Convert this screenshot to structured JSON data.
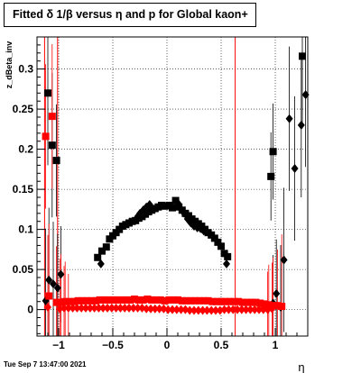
{
  "canvas_title": "Fitted δ 1/β versus η and p for Global kaon+",
  "footer_timestamp": "Tue Sep  7 13:47:00 2021",
  "chart_data": {
    "type": "scatter",
    "title": "Fitted δ 1/β versus η and p for Global kaon+",
    "xlabel": "η",
    "ylabel": "z_dBeta_inv",
    "xlim": [
      -1.2,
      1.3
    ],
    "ylim": [
      -0.033,
      0.34
    ],
    "grid": true,
    "x_ticks": [
      -1,
      -0.5,
      0,
      0.5,
      1
    ],
    "x_tick_labels": [
      "−1",
      "−0.5",
      "0",
      "0.5",
      "1"
    ],
    "y_ticks": [
      0,
      0.05,
      0.1,
      0.15,
      0.2,
      0.25,
      0.3
    ],
    "y_tick_labels": [
      "0",
      "0.05",
      "0.1",
      "0.15",
      "0.2",
      "0.25",
      "0.3"
    ],
    "vertical_lines": [
      -1.13,
      -1.01,
      0.63
    ],
    "series": [
      {
        "marker": "square",
        "color": "#000000",
        "points": [
          [
            -1.1,
            0.27
          ],
          [
            -1.06,
            0.205
          ],
          [
            -1.02,
            0.186
          ],
          [
            -0.64,
            0.065
          ],
          [
            -0.6,
            0.073
          ],
          [
            -0.56,
            0.078
          ],
          [
            -0.53,
            0.088
          ],
          [
            -0.5,
            0.092
          ],
          [
            -0.47,
            0.096
          ],
          [
            -0.44,
            0.1
          ],
          [
            -0.41,
            0.104
          ],
          [
            -0.38,
            0.106
          ],
          [
            -0.35,
            0.108
          ],
          [
            -0.32,
            0.11
          ],
          [
            -0.29,
            0.111
          ],
          [
            -0.26,
            0.114
          ],
          [
            -0.23,
            0.116
          ],
          [
            -0.2,
            0.119
          ],
          [
            -0.17,
            0.122
          ],
          [
            -0.14,
            0.124
          ],
          [
            -0.11,
            0.126
          ],
          [
            -0.08,
            0.128
          ],
          [
            -0.05,
            0.13
          ],
          [
            -0.02,
            0.129
          ],
          [
            0.02,
            0.13
          ],
          [
            0.05,
            0.127
          ],
          [
            0.08,
            0.136
          ],
          [
            0.11,
            0.128
          ],
          [
            0.14,
            0.124
          ],
          [
            0.17,
            0.12
          ],
          [
            0.2,
            0.117
          ],
          [
            0.23,
            0.113
          ],
          [
            0.26,
            0.11
          ],
          [
            0.29,
            0.107
          ],
          [
            0.32,
            0.104
          ],
          [
            0.35,
            0.1
          ],
          [
            0.38,
            0.096
          ],
          [
            0.41,
            0.093
          ],
          [
            0.44,
            0.089
          ],
          [
            0.47,
            0.084
          ],
          [
            0.5,
            0.079
          ],
          [
            0.53,
            0.07
          ],
          [
            0.56,
            0.066
          ],
          [
            0.96,
            0.166
          ],
          [
            0.98,
            0.197
          ],
          [
            1.25,
            0.316
          ]
        ]
      },
      {
        "marker": "diamond",
        "color": "#000000",
        "points": [
          [
            -1.12,
            0.011
          ],
          [
            -1.09,
            0.037
          ],
          [
            -1.05,
            0.032
          ],
          [
            -1.01,
            0.027
          ],
          [
            -0.98,
            0.044
          ],
          [
            -0.61,
            0.057
          ],
          [
            -0.27,
            0.116
          ],
          [
            -0.25,
            0.12
          ],
          [
            -0.22,
            0.124
          ],
          [
            -0.19,
            0.128
          ],
          [
            -0.16,
            0.131
          ],
          [
            0.1,
            0.133
          ],
          [
            0.13,
            0.125
          ],
          [
            0.16,
            0.12
          ],
          [
            0.19,
            0.113
          ],
          [
            0.22,
            0.108
          ],
          [
            0.25,
            0.104
          ],
          [
            0.28,
            0.102
          ],
          [
            0.31,
            0.101
          ],
          [
            0.34,
            0.098
          ],
          [
            0.55,
            0.057
          ],
          [
            0.98,
            0.008
          ],
          [
            1.01,
            0.02
          ],
          [
            1.05,
            0.003
          ],
          [
            1.08,
            0.062
          ],
          [
            1.13,
            0.238
          ],
          [
            1.18,
            0.176
          ],
          [
            1.24,
            0.23
          ],
          [
            1.28,
            0.268
          ]
        ]
      },
      {
        "marker": "square",
        "color": "#ff0000",
        "points": [
          [
            -1.12,
            0.216
          ],
          [
            -1.09,
            0.017
          ],
          [
            -1.06,
            0.241
          ],
          [
            -1.02,
            0.009
          ],
          [
            -0.98,
            0.009
          ],
          [
            -0.94,
            0.01
          ],
          [
            -0.9,
            0.01
          ],
          [
            -0.86,
            0.01
          ],
          [
            -0.82,
            0.011
          ],
          [
            -0.78,
            0.011
          ],
          [
            -0.74,
            0.011
          ],
          [
            -0.7,
            0.011
          ],
          [
            -0.66,
            0.011
          ],
          [
            -0.62,
            0.012
          ],
          [
            -0.58,
            0.012
          ],
          [
            -0.54,
            0.012
          ],
          [
            -0.5,
            0.012
          ],
          [
            -0.46,
            0.012
          ],
          [
            -0.42,
            0.012
          ],
          [
            -0.38,
            0.012
          ],
          [
            -0.34,
            0.012
          ],
          [
            -0.3,
            0.013
          ],
          [
            -0.26,
            0.012
          ],
          [
            -0.22,
            0.012
          ],
          [
            -0.18,
            0.013
          ],
          [
            -0.14,
            0.012
          ],
          [
            -0.1,
            0.012
          ],
          [
            -0.06,
            0.012
          ],
          [
            -0.02,
            0.011
          ],
          [
            0.02,
            0.012
          ],
          [
            0.06,
            0.012
          ],
          [
            0.1,
            0.012
          ],
          [
            0.14,
            0.011
          ],
          [
            0.18,
            0.011
          ],
          [
            0.22,
            0.011
          ],
          [
            0.26,
            0.011
          ],
          [
            0.3,
            0.011
          ],
          [
            0.34,
            0.011
          ],
          [
            0.38,
            0.011
          ],
          [
            0.42,
            0.01
          ],
          [
            0.46,
            0.01
          ],
          [
            0.5,
            0.01
          ],
          [
            0.54,
            0.01
          ],
          [
            0.58,
            0.01
          ],
          [
            0.62,
            0.01
          ],
          [
            0.66,
            0.01
          ],
          [
            0.7,
            0.009
          ],
          [
            0.74,
            0.009
          ],
          [
            0.78,
            0.009
          ],
          [
            0.82,
            0.009
          ],
          [
            0.86,
            0.008
          ],
          [
            0.9,
            0.007
          ],
          [
            0.94,
            0.006
          ],
          [
            0.98,
            0.005
          ],
          [
            1.02,
            0.005
          ],
          [
            1.06,
            0.004
          ]
        ]
      },
      {
        "marker": "diamond",
        "color": "#ff0000",
        "points": [
          [
            -1.1,
            0.003
          ],
          [
            -0.99,
            0.001
          ],
          [
            -0.95,
            0.002
          ],
          [
            -0.91,
            0.002
          ],
          [
            -0.87,
            0.002
          ],
          [
            -0.83,
            0.002
          ],
          [
            -0.79,
            0.002
          ],
          [
            -0.75,
            0.002
          ],
          [
            -0.71,
            0.002
          ],
          [
            -0.67,
            0.002
          ],
          [
            -0.63,
            0.002
          ],
          [
            -0.59,
            0.002
          ],
          [
            -0.55,
            0.002
          ],
          [
            -0.51,
            0.002
          ],
          [
            -0.47,
            0.002
          ],
          [
            -0.43,
            0.002
          ],
          [
            -0.39,
            0.002
          ],
          [
            -0.35,
            0.002
          ],
          [
            -0.31,
            0.002
          ],
          [
            -0.27,
            0.002
          ],
          [
            -0.23,
            0.002
          ],
          [
            -0.19,
            0.001
          ],
          [
            -0.15,
            0.001
          ],
          [
            -0.11,
            0.001
          ],
          [
            -0.07,
            0.001
          ],
          [
            -0.03,
            0.001
          ],
          [
            0.01,
            0.0
          ],
          [
            0.05,
            0.0
          ],
          [
            0.09,
            0.0
          ],
          [
            0.13,
            0.0
          ],
          [
            0.17,
            0.0
          ],
          [
            0.21,
            -0.001
          ],
          [
            0.25,
            -0.001
          ],
          [
            0.29,
            -0.001
          ],
          [
            0.33,
            -0.001
          ],
          [
            0.37,
            -0.001
          ],
          [
            0.41,
            -0.001
          ],
          [
            0.45,
            -0.001
          ],
          [
            0.49,
            -0.001
          ],
          [
            0.53,
            0.0
          ],
          [
            0.57,
            0.0
          ],
          [
            0.61,
            0.0
          ],
          [
            0.65,
            0.0
          ],
          [
            0.69,
            0.0
          ],
          [
            0.73,
            0.0
          ],
          [
            0.77,
            0.0
          ],
          [
            0.81,
            0.0
          ],
          [
            0.85,
            0.0
          ],
          [
            0.89,
            0.0
          ],
          [
            0.93,
            0.0
          ],
          [
            0.97,
            0.001
          ]
        ]
      }
    ]
  }
}
